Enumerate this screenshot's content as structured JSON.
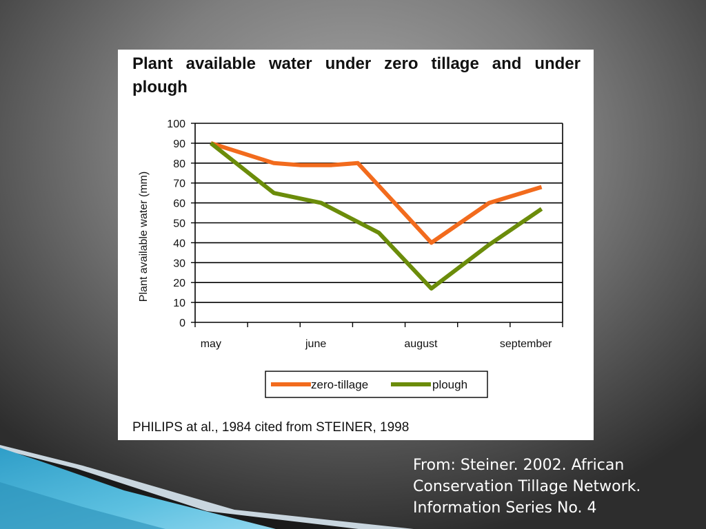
{
  "colors": {
    "zero_tillage": "#f26b1d",
    "plough": "#6b8c0a",
    "grid": "#000000",
    "accent_blue": "#3aa6cf"
  },
  "chart_data": {
    "type": "line",
    "title": "Plant available water under zero tillage and under plough",
    "xlabel": "",
    "ylabel": "Plant available water (mm)",
    "ylim": [
      0,
      100
    ],
    "yticks": [
      0,
      10,
      20,
      30,
      40,
      50,
      60,
      70,
      80,
      90,
      100
    ],
    "xlim": [
      0,
      7
    ],
    "x_tick_positions": [
      0,
      1,
      2,
      3,
      4,
      5,
      6,
      7
    ],
    "x_tick_labels": [
      {
        "label": "may",
        "at": 0.3
      },
      {
        "label": "june",
        "at": 2.3
      },
      {
        "label": "august",
        "at": 4.3
      },
      {
        "label": "september",
        "at": 6.3
      }
    ],
    "grid": true,
    "legend_position": "bottom",
    "series": [
      {
        "name": "zero-tillage",
        "x": [
          0.3,
          1.5,
          2.0,
          2.6,
          3.1,
          4.5,
          5.6,
          6.6
        ],
        "values": [
          90,
          80,
          79,
          79,
          80,
          40,
          60,
          68
        ]
      },
      {
        "name": "plough",
        "x": [
          0.3,
          1.5,
          2.4,
          3.5,
          4.5,
          5.6,
          6.6
        ],
        "values": [
          90,
          65,
          60,
          45,
          17,
          39,
          57
        ]
      }
    ]
  },
  "citation": "PHILIPS at al., 1984 cited from STEINER, 1998",
  "source_note": {
    "line1": "From:  Steiner.  2002.  African",
    "line2": "Conservation Tillage Network.",
    "line3": "Information Series No. 4"
  }
}
